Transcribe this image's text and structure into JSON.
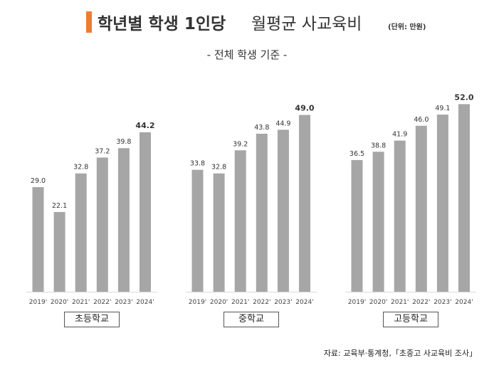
{
  "header": {
    "title_bold": "학년별 학생 1인당",
    "title_normal": "월평균 사교육비",
    "unit": "(단위: 만원)",
    "subtitle": "- 전체 학생 기준 -"
  },
  "colors": {
    "bar": "#A6A6A6",
    "accent": "#ED7D31",
    "axis": "#D9D9D9"
  },
  "chart_data": [
    {
      "type": "bar",
      "title": "초등학교",
      "categories": [
        "2019'",
        "2020'",
        "2021'",
        "2022'",
        "2023'",
        "2024'"
      ],
      "values": [
        29.0,
        22.1,
        32.8,
        37.2,
        39.8,
        44.2
      ],
      "labels": [
        "29.0",
        "22.1",
        "32.8",
        "37.2",
        "39.8",
        "44.2"
      ],
      "highlight_last": true
    },
    {
      "type": "bar",
      "title": "중학교",
      "categories": [
        "2019'",
        "2020'",
        "2021'",
        "2022'",
        "2023'",
        "2024'"
      ],
      "values": [
        33.8,
        32.8,
        39.2,
        43.8,
        44.9,
        49.0
      ],
      "labels": [
        "33.8",
        "32.8",
        "39.2",
        "43.8",
        "44.9",
        "49.0"
      ],
      "highlight_last": true
    },
    {
      "type": "bar",
      "title": "고등학교",
      "categories": [
        "2019'",
        "2020'",
        "2021'",
        "2022'",
        "2023'",
        "2024'"
      ],
      "values": [
        36.5,
        38.8,
        41.9,
        46.0,
        49.1,
        52.0
      ],
      "labels": [
        "36.5",
        "38.8",
        "41.9",
        "46.0",
        "49.1",
        "52.0"
      ],
      "highlight_last": true
    }
  ],
  "footer": {
    "source": "자료: 교육부·통계청,「초중고 사교육비 조사」"
  }
}
